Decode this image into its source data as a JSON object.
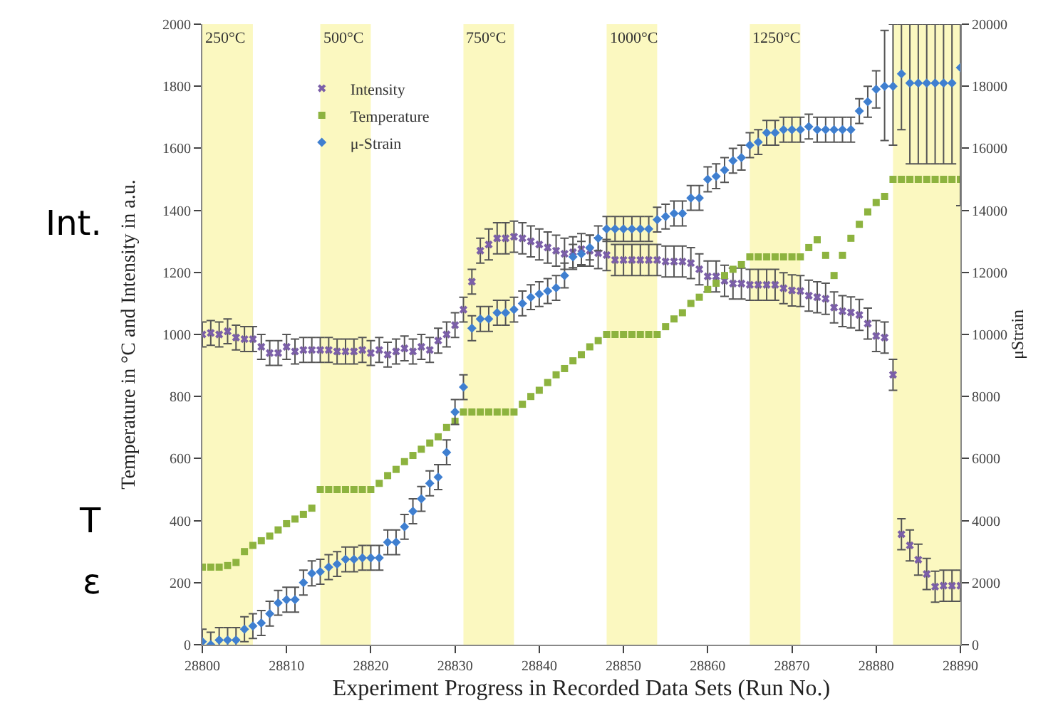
{
  "chart_data": {
    "type": "scatter",
    "xlabel": "Experiment Progress in Recorded Data Sets (Run No.)",
    "ylabel": "Temperature in °C and Intensity in a.u.",
    "y2label": "μStrain",
    "annotations": [
      "Int.",
      "T",
      "ε"
    ],
    "x": [
      28800,
      28801,
      28802,
      28803,
      28804,
      28805,
      28806,
      28807,
      28808,
      28809,
      28810,
      28811,
      28812,
      28813,
      28814,
      28815,
      28816,
      28817,
      28818,
      28819,
      28820,
      28821,
      28822,
      28823,
      28824,
      28825,
      28826,
      28827,
      28828,
      28829,
      28830,
      28831,
      28832,
      28833,
      28834,
      28835,
      28836,
      28837,
      28838,
      28839,
      28840,
      28841,
      28842,
      28843,
      28844,
      28845,
      28846,
      28847,
      28848,
      28849,
      28850,
      28851,
      28852,
      28853,
      28854,
      28855,
      28856,
      28857,
      28858,
      28859,
      28860,
      28861,
      28862,
      28863,
      28864,
      28865,
      28866,
      28867,
      28868,
      28869,
      28870,
      28871,
      28872,
      28873,
      28874,
      28875,
      28876,
      28877,
      28878,
      28879,
      28880,
      28881,
      28882,
      28883,
      28884,
      28885,
      28886,
      28887,
      28888,
      28889,
      28890
    ],
    "series": [
      {
        "name": "Intensity",
        "color": "#7b5fa8",
        "marker": "cross",
        "values": [
          1000,
          1005,
          1000,
          1010,
          990,
          985,
          985,
          960,
          940,
          940,
          960,
          945,
          950,
          950,
          950,
          950,
          945,
          945,
          945,
          950,
          940,
          950,
          935,
          945,
          955,
          945,
          960,
          950,
          980,
          1000,
          1030,
          1080,
          1170,
          1270,
          1290,
          1310,
          1310,
          1315,
          1310,
          1300,
          1290,
          1280,
          1270,
          1260,
          1265,
          1275,
          1270,
          1262,
          1256,
          1240,
          1240,
          1240,
          1240,
          1240,
          1240,
          1235,
          1235,
          1235,
          1230,
          1210,
          1187,
          1187,
          1173,
          1164,
          1164,
          1160,
          1160,
          1160,
          1160,
          1149,
          1142,
          1140,
          1125,
          1120,
          1115,
          1087,
          1075,
          1071,
          1063,
          1035,
          995,
          990,
          870,
          356,
          320,
          274,
          228,
          187,
          190,
          190,
          190
        ],
        "errors": [
          40,
          40,
          40,
          40,
          40,
          40,
          40,
          40,
          40,
          40,
          40,
          40,
          40,
          40,
          40,
          40,
          40,
          40,
          40,
          40,
          40,
          40,
          40,
          40,
          40,
          40,
          40,
          40,
          40,
          40,
          40,
          40,
          40,
          40,
          50,
          50,
          50,
          50,
          50,
          50,
          50,
          50,
          50,
          50,
          50,
          50,
          50,
          50,
          50,
          50,
          50,
          50,
          50,
          50,
          50,
          50,
          50,
          50,
          50,
          50,
          50,
          50,
          50,
          50,
          50,
          50,
          50,
          50,
          50,
          50,
          50,
          50,
          50,
          50,
          50,
          50,
          50,
          50,
          50,
          50,
          50,
          50,
          50,
          50,
          50,
          50,
          50,
          50,
          50,
          50,
          50
        ]
      },
      {
        "name": "Temperature",
        "color": "#8db33f",
        "marker": "square",
        "values": [
          250,
          250,
          250,
          255,
          265,
          300,
          320,
          335,
          350,
          370,
          390,
          405,
          420,
          440,
          500,
          500,
          500,
          500,
          500,
          500,
          500,
          520,
          545,
          565,
          590,
          610,
          630,
          650,
          670,
          700,
          720,
          750,
          750,
          750,
          750,
          750,
          750,
          750,
          775,
          800,
          820,
          845,
          870,
          890,
          915,
          935,
          960,
          980,
          1000,
          1000,
          1000,
          1000,
          1000,
          1000,
          1000,
          1025,
          1050,
          1070,
          1100,
          1120,
          1145,
          1165,
          1190,
          1210,
          1225,
          1250,
          1250,
          1250,
          1250,
          1250,
          1250,
          1250,
          1280,
          1305,
          1255,
          1190,
          1255,
          1310,
          1355,
          1395,
          1425,
          1445,
          1500,
          1500,
          1500,
          1500,
          1500,
          1500,
          1500,
          1500,
          1500
        ]
      },
      {
        "name": "μ-Strain",
        "color": "#3f7fd0",
        "marker": "diamond",
        "axis": "y2",
        "values": [
          100,
          0,
          150,
          150,
          150,
          500,
          600,
          700,
          1000,
          1350,
          1450,
          1450,
          2000,
          2300,
          2350,
          2500,
          2600,
          2750,
          2750,
          2800,
          2800,
          2800,
          3300,
          3300,
          3800,
          4300,
          4700,
          5200,
          5400,
          6200,
          7500,
          8300,
          10200,
          10500,
          10500,
          10700,
          10700,
          10800,
          11000,
          11200,
          11300,
          11400,
          11500,
          11900,
          12500,
          12600,
          12800,
          13100,
          13400,
          13400,
          13400,
          13400,
          13400,
          13400,
          13700,
          13800,
          13900,
          13900,
          14400,
          14400,
          15000,
          15100,
          15300,
          15600,
          15700,
          16100,
          16200,
          16500,
          16500,
          16600,
          16600,
          16600,
          16700,
          16600,
          16600,
          16600,
          16600,
          16600,
          17200,
          17500,
          17900,
          18000,
          18000,
          18400,
          18100,
          18100,
          18100,
          18100,
          18100,
          18100,
          18600
        ],
        "errors": [
          400,
          400,
          400,
          400,
          400,
          400,
          400,
          400,
          400,
          400,
          400,
          400,
          400,
          400,
          400,
          400,
          400,
          400,
          400,
          400,
          400,
          400,
          400,
          400,
          400,
          400,
          400,
          400,
          400,
          400,
          400,
          400,
          400,
          400,
          400,
          400,
          400,
          400,
          400,
          400,
          400,
          400,
          400,
          400,
          400,
          400,
          400,
          400,
          400,
          400,
          400,
          400,
          400,
          400,
          400,
          400,
          400,
          400,
          400,
          400,
          400,
          400,
          400,
          400,
          400,
          400,
          400,
          400,
          400,
          400,
          400,
          400,
          400,
          400,
          400,
          400,
          400,
          400,
          400,
          500,
          600,
          [
            16250,
            19800
          ],
          [
            16100,
            20000
          ],
          [
            16600,
            20000
          ],
          [
            15500,
            20000
          ],
          [
            15500,
            20000
          ],
          [
            15500,
            20000
          ],
          [
            15500,
            20000
          ],
          [
            15500,
            20000
          ],
          [
            15500,
            20000
          ],
          [
            14150,
            20000
          ]
        ]
      }
    ],
    "bands": [
      {
        "axis": "x",
        "from": 28800,
        "to": 28806,
        "label": "250°C",
        "color": "#fbf8c0"
      },
      {
        "axis": "x",
        "from": 28814,
        "to": 28820,
        "label": "500°C",
        "color": "#fbf8c0"
      },
      {
        "axis": "x",
        "from": 28831,
        "to": 28837,
        "label": "750°C",
        "color": "#fbf8c0"
      },
      {
        "axis": "x",
        "from": 28848,
        "to": 28854,
        "label": "1000°C",
        "color": "#fbf8c0"
      },
      {
        "axis": "x",
        "from": 28865,
        "to": 28871,
        "label": "1250°C",
        "color": "#fbf8c0"
      },
      {
        "axis": "x",
        "from": 28882,
        "to": 28890,
        "color": "#fbf8c0"
      }
    ],
    "xlim": [
      28800,
      28890
    ],
    "xticks": [
      28800,
      28810,
      28820,
      28830,
      28840,
      28850,
      28860,
      28870,
      28880,
      28890
    ],
    "ylim": [
      0,
      2000
    ],
    "yticks": [
      0,
      200,
      400,
      600,
      800,
      1000,
      1200,
      1400,
      1600,
      1800,
      2000
    ],
    "y2lim": [
      0,
      20000
    ],
    "y2ticks": [
      0,
      2000,
      4000,
      6000,
      8000,
      10000,
      12000,
      14000,
      16000,
      18000,
      20000
    ],
    "grid": false,
    "legend": "top left"
  }
}
